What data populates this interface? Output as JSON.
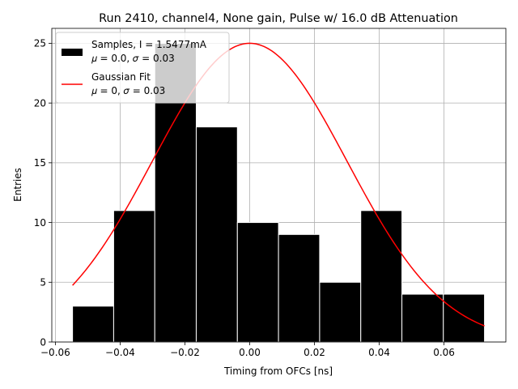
{
  "chart_data": {
    "type": "histogram",
    "title": "Run 2410, channel4, None gain, Pulse w/ 16.0 dB Attenuation",
    "xlabel": "Timing from OFCs [ns]",
    "ylabel": "Entries",
    "xlim": [
      -0.0611,
      0.0791
    ],
    "ylim": [
      0,
      26.25
    ],
    "xticks": [
      -0.06,
      -0.04,
      -0.02,
      0.0,
      0.02,
      0.04,
      0.06
    ],
    "xtick_labels": [
      "−0.06",
      "−0.04",
      "−0.02",
      "0.00",
      "0.02",
      "0.04",
      "0.06"
    ],
    "yticks": [
      0,
      5,
      10,
      15,
      20,
      25
    ],
    "ytick_labels": [
      "0",
      "5",
      "10",
      "15",
      "20",
      "25"
    ],
    "grid": true,
    "legend_position": "top-left",
    "bins": {
      "edges": [
        -0.0547,
        -0.042,
        -0.0293,
        -0.0165,
        -0.0038,
        0.0089,
        0.0216,
        0.0343,
        0.047,
        0.0598,
        0.0725
      ],
      "counts": [
        3,
        11,
        25,
        18,
        10,
        9,
        5,
        11,
        4,
        4
      ],
      "color": "#000000",
      "edgecolor": "#ffffff"
    },
    "fit": {
      "mu": 0,
      "sigma": 0.03,
      "amplitude": 25,
      "x_range": [
        -0.0547,
        0.0725
      ],
      "color": "#ff0000"
    },
    "legend": {
      "samples_line1": "Samples, I = 1.5477mA",
      "samples_line2": "𝜇 = 0.0, 𝜎 = 0.03",
      "fit_line1": "Gaussian Fit",
      "fit_line2": "𝜇 = 0, 𝜎 = 0.03"
    }
  }
}
